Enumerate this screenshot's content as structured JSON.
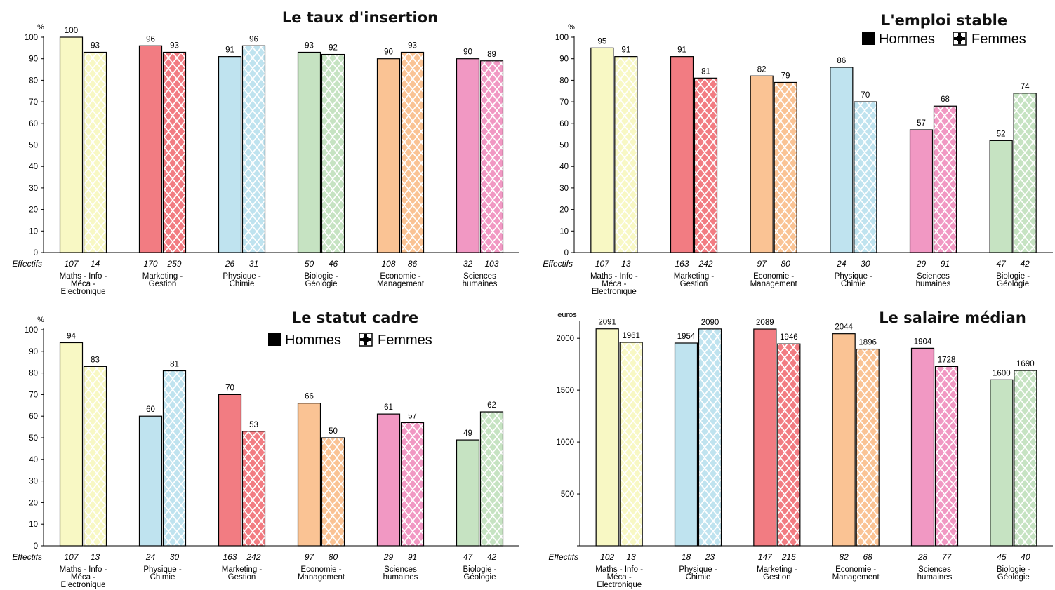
{
  "effectifs_label": "Effectifs",
  "legend": {
    "hommes": "Hommes",
    "femmes": "Femmes"
  },
  "chart_data": [
    {
      "type": "bar",
      "title": "Le taux d'insertion",
      "unit": "%",
      "ylim": [
        0,
        100
      ],
      "yticks": [
        0,
        10,
        20,
        30,
        40,
        50,
        60,
        70,
        80,
        90,
        100
      ],
      "categories": [
        [
          "Maths - Info -",
          "Méca -",
          "Electronique"
        ],
        [
          "Marketing -",
          "Gestion"
        ],
        [
          "Physique -",
          "Chimie"
        ],
        [
          "Biologie -",
          "Géologie"
        ],
        [
          "Economie -",
          "Management"
        ],
        [
          "Sciences",
          "humaines"
        ]
      ],
      "colors": [
        "#f8f8c4",
        "#f27c82",
        "#bfe3ef",
        "#c6e3c2",
        "#fac394",
        "#f198c3"
      ],
      "series": [
        {
          "name": "Hommes",
          "values": [
            100,
            96,
            91,
            93,
            90,
            90
          ],
          "effectifs": [
            "107",
            "170",
            "26",
            "50",
            "108",
            "32"
          ]
        },
        {
          "name": "Femmes",
          "values": [
            93,
            93,
            96,
            92,
            93,
            89
          ],
          "effectifs": [
            "14",
            "259",
            "31",
            "46",
            "86",
            "103"
          ]
        }
      ],
      "legend": false
    },
    {
      "type": "bar",
      "title": "L'emploi stable",
      "unit": "%",
      "ylim": [
        0,
        100
      ],
      "yticks": [
        0,
        10,
        20,
        30,
        40,
        50,
        60,
        70,
        80,
        90,
        100
      ],
      "categories": [
        [
          "Maths - Info -",
          "Méca -",
          "Electronique"
        ],
        [
          "Marketing -",
          "Gestion"
        ],
        [
          "Economie -",
          "Management"
        ],
        [
          "Physique -",
          "Chimie"
        ],
        [
          "Sciences",
          "humaines"
        ],
        [
          "Biologie -",
          "Géologie"
        ]
      ],
      "colors": [
        "#f8f8c4",
        "#f27c82",
        "#fac394",
        "#bfe3ef",
        "#f198c3",
        "#c6e3c2"
      ],
      "series": [
        {
          "name": "Hommes",
          "values": [
            95,
            91,
            82,
            86,
            57,
            52
          ],
          "effectifs": [
            "107",
            "163",
            "97",
            "24",
            "29",
            "47"
          ]
        },
        {
          "name": "Femmes",
          "values": [
            91,
            81,
            79,
            70,
            68,
            74
          ],
          "effectifs": [
            "13",
            "242",
            "80",
            "30",
            "91",
            "42"
          ]
        }
      ],
      "legend": true
    },
    {
      "type": "bar",
      "title": "Le statut cadre",
      "unit": "%",
      "ylim": [
        0,
        100
      ],
      "yticks": [
        0,
        10,
        20,
        30,
        40,
        50,
        60,
        70,
        80,
        90,
        100
      ],
      "categories": [
        [
          "Maths - Info -",
          "Méca -",
          "Electronique"
        ],
        [
          "Physique -",
          "Chimie"
        ],
        [
          "Marketing -",
          "Gestion"
        ],
        [
          "Economie -",
          "Management"
        ],
        [
          "Sciences",
          "humaines"
        ],
        [
          "Biologie -",
          "Géologie"
        ]
      ],
      "colors": [
        "#f8f8c4",
        "#bfe3ef",
        "#f27c82",
        "#fac394",
        "#f198c3",
        "#c6e3c2"
      ],
      "series": [
        {
          "name": "Hommes",
          "values": [
            94,
            60,
            70,
            66,
            61,
            49
          ],
          "effectifs": [
            "107",
            "24",
            "163",
            "97",
            "29",
            "47"
          ]
        },
        {
          "name": "Femmes",
          "values": [
            83,
            81,
            53,
            50,
            57,
            62
          ],
          "effectifs": [
            "13",
            "30",
            "242",
            "80",
            "91",
            "42"
          ]
        }
      ],
      "legend": true
    },
    {
      "type": "bar",
      "title": "Le salaire médian",
      "unit": "euros",
      "ylim": [
        0,
        2150
      ],
      "yticks": [
        500,
        1000,
        1500,
        2000
      ],
      "categories": [
        [
          "Maths - Info -",
          "Méca -",
          "Electronique"
        ],
        [
          "Physique -",
          "Chimie"
        ],
        [
          "Marketing -",
          "Gestion"
        ],
        [
          "Economie -",
          "Management"
        ],
        [
          "Sciences",
          "humaines"
        ],
        [
          "Biologie -",
          "Géologie"
        ]
      ],
      "colors": [
        "#f8f8c4",
        "#bfe3ef",
        "#f27c82",
        "#fac394",
        "#f198c3",
        "#c6e3c2"
      ],
      "series": [
        {
          "name": "Hommes",
          "values": [
            2091,
            1954,
            2089,
            2044,
            1904,
            1600
          ],
          "effectifs": [
            "102",
            "18",
            "147",
            "82",
            "28",
            "45"
          ]
        },
        {
          "name": "Femmes",
          "values": [
            1961,
            2090,
            1946,
            1896,
            1728,
            1690
          ],
          "effectifs": [
            "13",
            "23",
            "215",
            "68",
            "77",
            "40"
          ]
        }
      ],
      "legend": false
    }
  ]
}
